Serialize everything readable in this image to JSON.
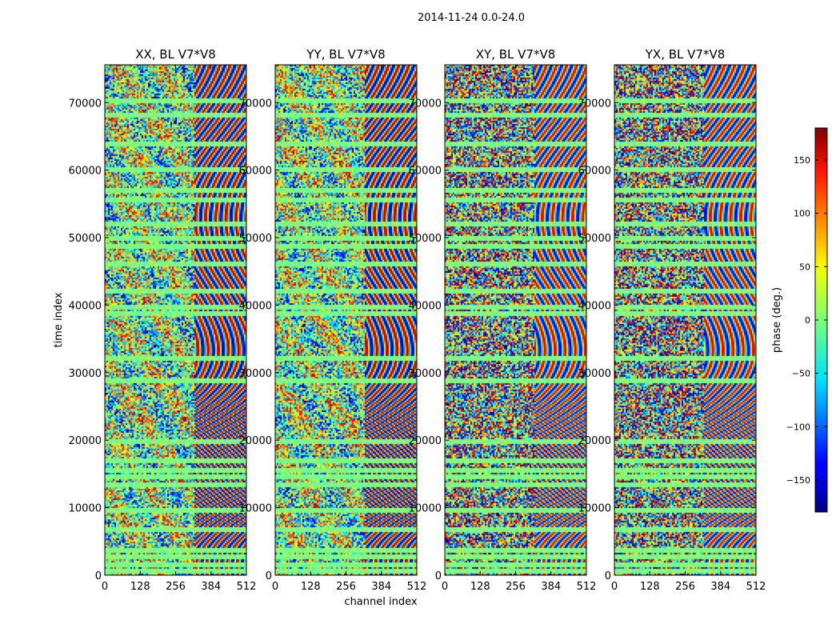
{
  "figure": {
    "suptitle": "2014-11-24 0.0-24.0"
  },
  "chart_data": {
    "type": "heatmap",
    "panels": [
      {
        "title": "XX, BL V7*V8",
        "polarization": "XX"
      },
      {
        "title": "YY, BL V7*V8",
        "polarization": "YY"
      },
      {
        "title": "XY, BL V7*V8",
        "polarization": "XY"
      },
      {
        "title": "YX, BL V7*V8",
        "polarization": "YX"
      }
    ],
    "xlabel": "channel index",
    "ylabel": "time index",
    "xlim": [
      0,
      512
    ],
    "ylim": [
      0,
      75600
    ],
    "xticks": [
      0,
      128,
      256,
      384,
      512
    ],
    "yticks": [
      0,
      10000,
      20000,
      30000,
      40000,
      50000,
      60000,
      70000
    ],
    "colorbar": {
      "label": "phase (deg.)",
      "range": [
        -180,
        180
      ],
      "ticks": [
        -150,
        -100,
        -50,
        0,
        50,
        100,
        150
      ],
      "colormap": "jet"
    },
    "flagged_time_bands": [
      700,
      1700,
      2800,
      3700,
      6900,
      9700,
      13400,
      14600,
      15700,
      17000,
      19900,
      28800,
      32200,
      38800,
      39700,
      42300,
      46300,
      48800,
      50000,
      52100,
      55600,
      57000,
      60200,
      63900,
      68200,
      70500
    ],
    "noise_channel_boundary": 320
  }
}
